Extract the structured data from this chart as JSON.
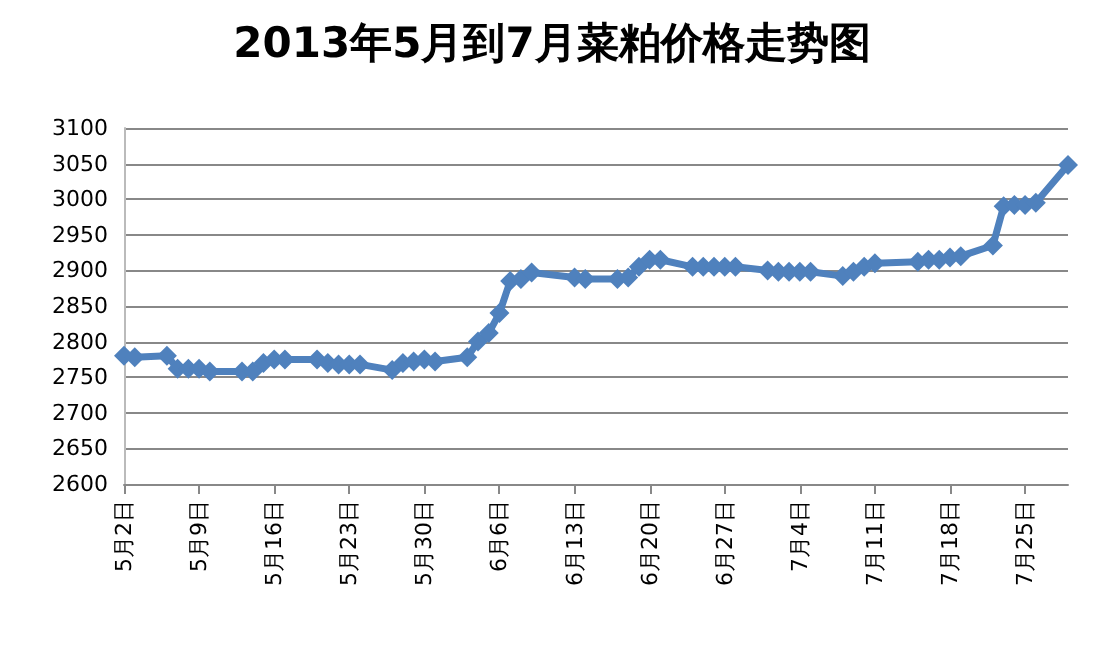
{
  "chart_data": {
    "type": "line",
    "title": "2013年5月到7月菜粕价格走势图",
    "x": [
      "2013-05-02",
      "2013-05-03",
      "2013-05-06",
      "2013-05-07",
      "2013-05-08",
      "2013-05-09",
      "2013-05-10",
      "2013-05-13",
      "2013-05-14",
      "2013-05-15",
      "2013-05-16",
      "2013-05-17",
      "2013-05-20",
      "2013-05-21",
      "2013-05-22",
      "2013-05-23",
      "2013-05-24",
      "2013-05-27",
      "2013-05-28",
      "2013-05-29",
      "2013-05-30",
      "2013-05-31",
      "2013-06-03",
      "2013-06-04",
      "2013-06-05",
      "2013-06-06",
      "2013-06-07",
      "2013-06-08",
      "2013-06-09",
      "2013-06-13",
      "2013-06-14",
      "2013-06-17",
      "2013-06-18",
      "2013-06-19",
      "2013-06-20",
      "2013-06-21",
      "2013-06-24",
      "2013-06-25",
      "2013-06-26",
      "2013-06-27",
      "2013-06-28",
      "2013-07-01",
      "2013-07-02",
      "2013-07-03",
      "2013-07-04",
      "2013-07-05",
      "2013-07-08",
      "2013-07-09",
      "2013-07-10",
      "2013-07-11",
      "2013-07-15",
      "2013-07-16",
      "2013-07-17",
      "2013-07-18",
      "2013-07-19",
      "2013-07-22",
      "2013-07-23",
      "2013-07-24",
      "2013-07-25",
      "2013-07-26",
      "2013-07-29"
    ],
    "series": [
      {
        "color": "#4f81bd",
        "values": [
          2780,
          2778,
          2780,
          2762,
          2762,
          2762,
          2758,
          2758,
          2758,
          2770,
          2775,
          2775,
          2775,
          2770,
          2768,
          2768,
          2768,
          2760,
          2770,
          2772,
          2775,
          2772,
          2778,
          2800,
          2812,
          2840,
          2885,
          2888,
          2897,
          2890,
          2888,
          2888,
          2890,
          2905,
          2915,
          2915,
          2905,
          2905,
          2905,
          2905,
          2905,
          2900,
          2898,
          2898,
          2898,
          2898,
          2892,
          2898,
          2905,
          2910,
          2912,
          2915,
          2915,
          2918,
          2920,
          2935,
          2990,
          2992,
          2992,
          2995,
          3048
        ]
      }
    ],
    "xlim": [
      "2013-05-02",
      "2013-07-29"
    ],
    "xticks": [
      {
        "value": "2013-05-02",
        "label": "5月2日"
      },
      {
        "value": "2013-05-09",
        "label": "5月9日"
      },
      {
        "value": "2013-05-16",
        "label": "5月16日"
      },
      {
        "value": "2013-05-23",
        "label": "5月23日"
      },
      {
        "value": "2013-05-30",
        "label": "5月30日"
      },
      {
        "value": "2013-06-06",
        "label": "6月6日"
      },
      {
        "value": "2013-06-13",
        "label": "6月13日"
      },
      {
        "value": "2013-06-20",
        "label": "6月20日"
      },
      {
        "value": "2013-06-27",
        "label": "6月27日"
      },
      {
        "value": "2013-07-04",
        "label": "7月4日"
      },
      {
        "value": "2013-07-11",
        "label": "7月11日"
      },
      {
        "value": "2013-07-18",
        "label": "7月18日"
      },
      {
        "value": "2013-07-25",
        "label": "7月25日"
      }
    ],
    "ylim": [
      2600,
      3100
    ],
    "yticks": [
      2600,
      2650,
      2700,
      2750,
      2800,
      2850,
      2900,
      2950,
      3000,
      3050,
      3100
    ],
    "grid": "y",
    "marker": "diamond",
    "line_style": "solid"
  }
}
